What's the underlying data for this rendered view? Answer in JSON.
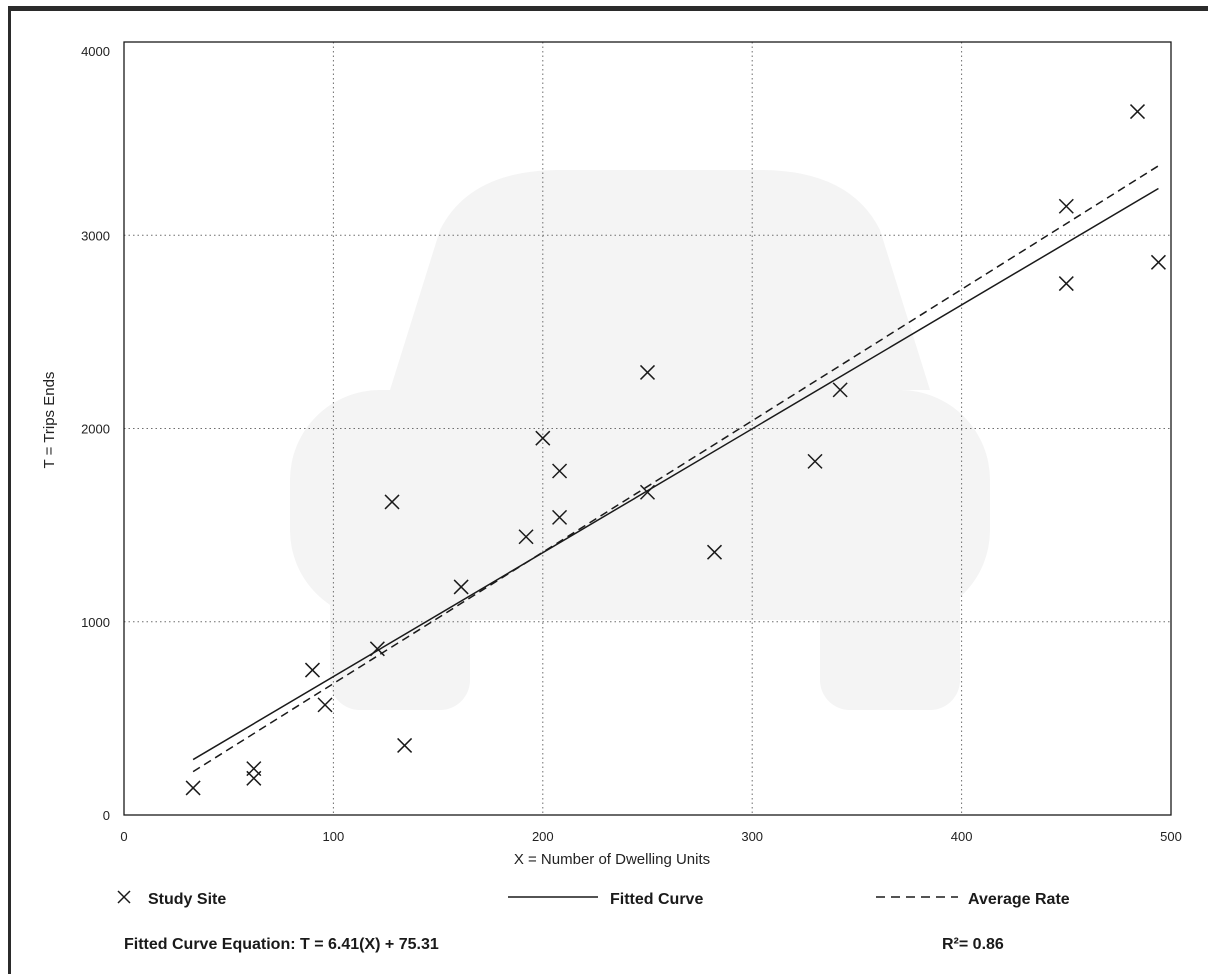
{
  "chart_data": {
    "type": "scatter",
    "title": "",
    "xlabel": "X = Number of Dwelling Units",
    "ylabel": "T = Trips Ends",
    "xlim": [
      0,
      500
    ],
    "ylim": [
      0,
      4000
    ],
    "x_ticks": [
      "0",
      "100",
      "200",
      "300",
      "400",
      "500"
    ],
    "y_ticks": [
      "0",
      "1000",
      "2000",
      "3000",
      "4000"
    ],
    "x_tick_values": [
      0,
      100,
      200,
      300,
      400,
      500
    ],
    "y_tick_values": [
      0,
      1000,
      2000,
      3000,
      4000
    ],
    "grid": true,
    "legend_placement": "bottom",
    "series": [
      {
        "name": "Study Site",
        "marker": "x",
        "x": [
          33,
          62,
          62,
          90,
          96,
          121,
          128,
          134,
          161,
          192,
          200,
          208,
          208,
          250,
          250,
          282,
          330,
          342,
          450,
          450,
          484,
          494
        ],
        "y": [
          140,
          190,
          240,
          750,
          570,
          860,
          1620,
          360,
          1180,
          1440,
          1950,
          1780,
          1540,
          2290,
          1670,
          1360,
          1830,
          2200,
          2750,
          3150,
          3640,
          2860
        ]
      }
    ],
    "fitted_curve": {
      "name": "Fitted Curve",
      "slope": 6.41,
      "intercept": 75.31,
      "x_range": [
        33,
        494
      ],
      "style": "solid"
    },
    "average_rate": {
      "name": "Average Rate",
      "rate": 6.8,
      "x_range": [
        33,
        494
      ],
      "style": "dashed"
    },
    "equation_label": "Fitted Curve Equation: T = 6.41(X) + 75.31",
    "r_squared_label": "R²= 0.86",
    "colors": {
      "ink": "#1a1a1a",
      "grid": "#6e6e6e",
      "watermark": "#f4f4f4"
    }
  }
}
